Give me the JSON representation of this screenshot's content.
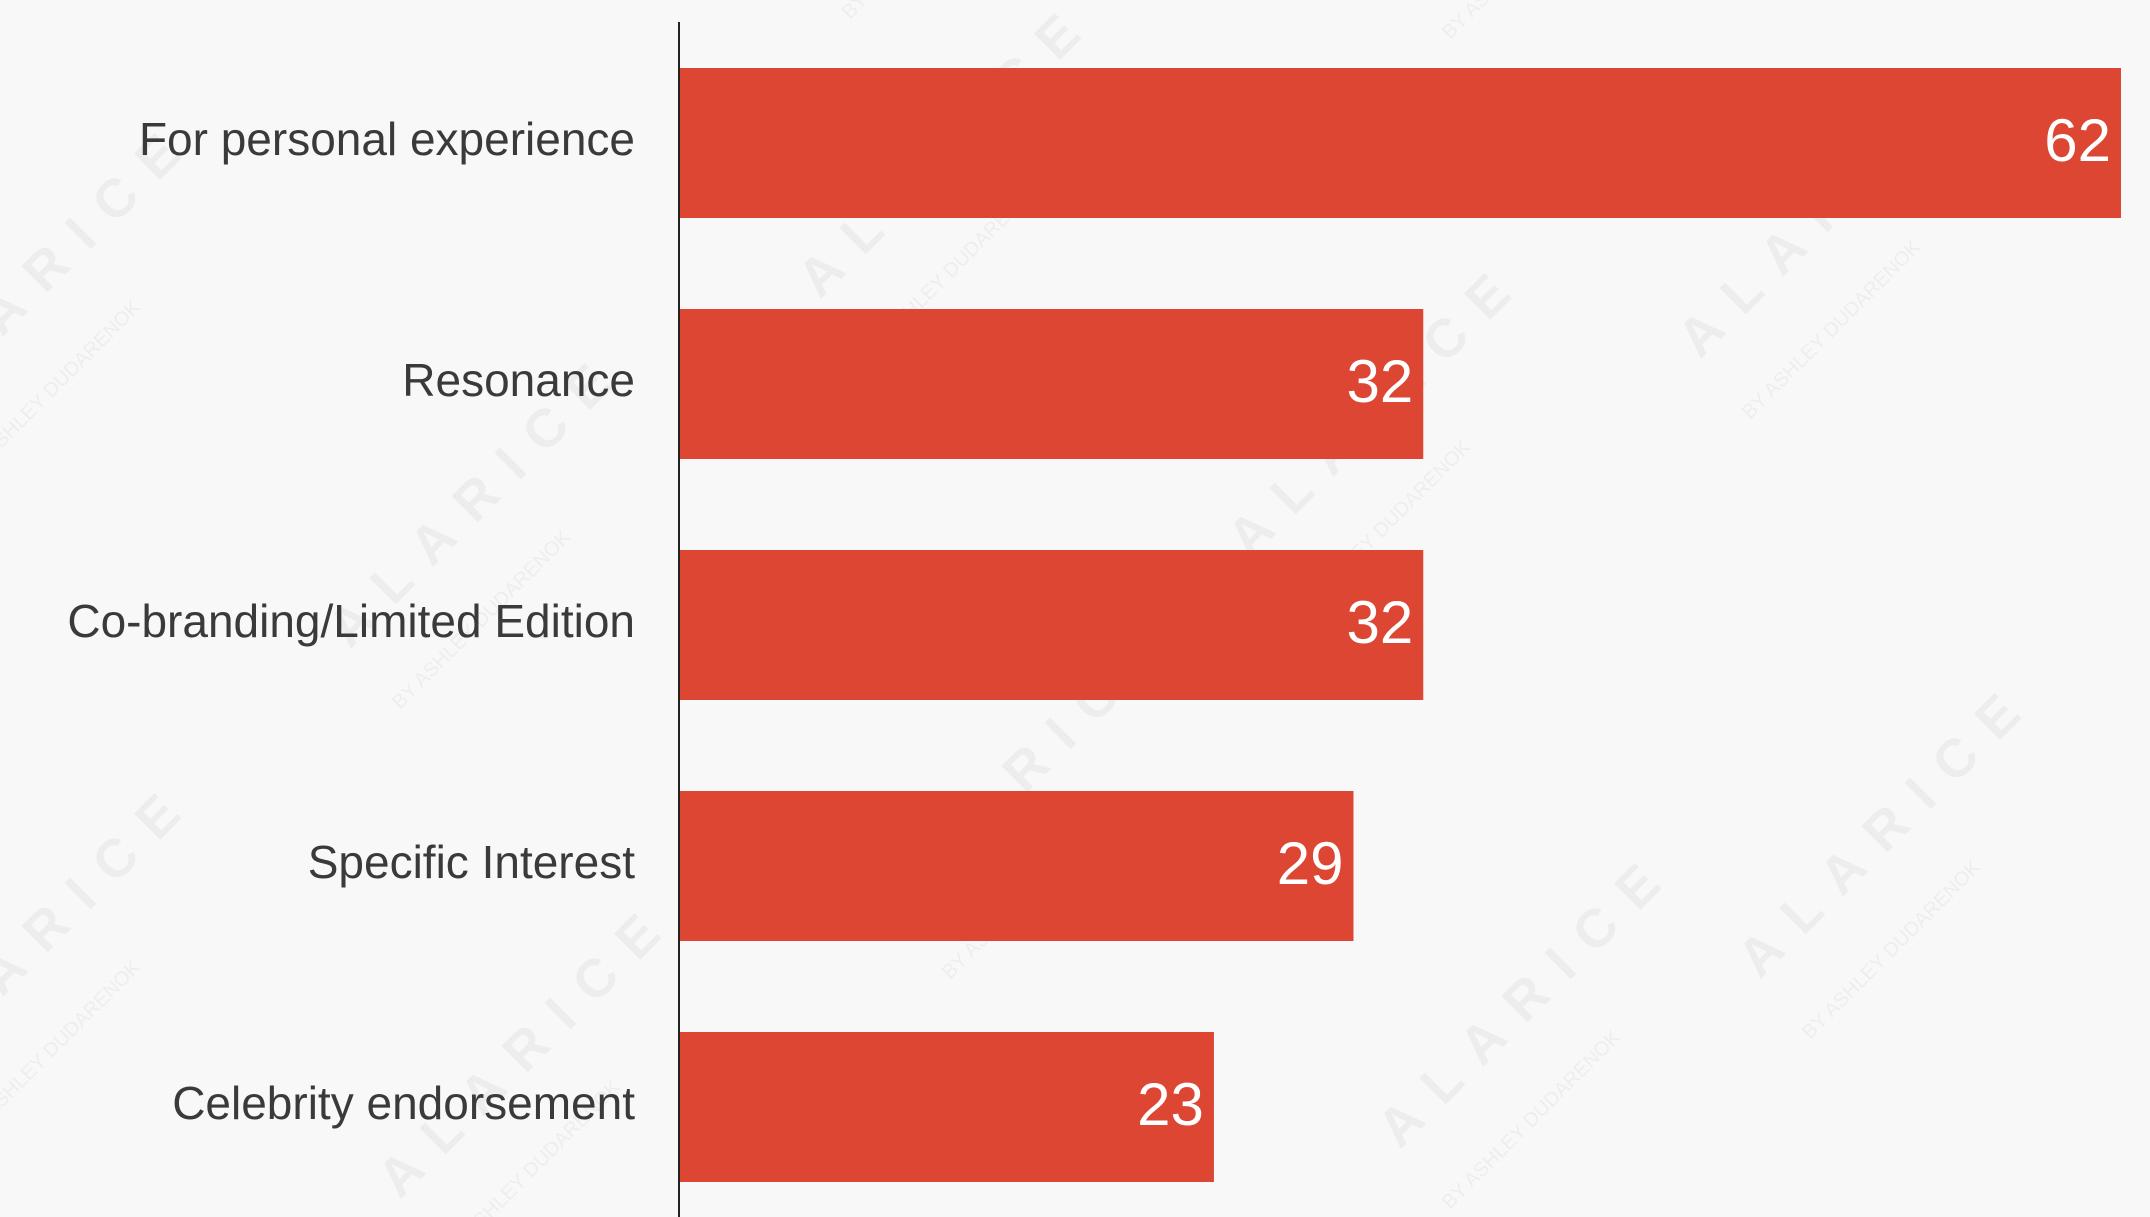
{
  "colors": {
    "bar": "#dc4633",
    "axis": "#222222",
    "label": "#3a3a3a",
    "value": "#ffffff",
    "background": "#f8f8f8"
  },
  "watermark": {
    "brand": "ALARICE",
    "tagline": "BY ASHLEY DUDARENOK"
  },
  "chart_data": {
    "type": "bar",
    "orientation": "horizontal",
    "categories": [
      "For personal experience",
      "Resonance",
      "Co-branding/Limited Edition",
      "Specific Interest",
      "Celebrity endorsement"
    ],
    "values": [
      62,
      32,
      32,
      29,
      23
    ],
    "title": "",
    "xlabel": "",
    "ylabel": "",
    "xlim": [
      0,
      62
    ],
    "grid": false,
    "legend": "none",
    "data_labels": true
  }
}
